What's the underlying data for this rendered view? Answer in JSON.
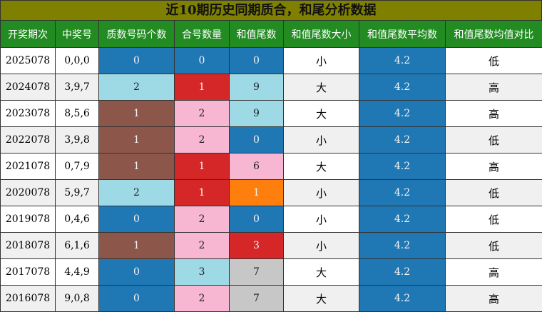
{
  "title": "近10期历史同期质合，和尾分析数据",
  "headers": [
    "开奖期次",
    "中奖号",
    "质数号码个数",
    "合号数量",
    "和值尾数",
    "和值尾数大小",
    "和值尾数平均数",
    "和值尾数均值对比"
  ],
  "colors": {
    "blue": "#1f77b4",
    "lightblue": "#9edae5",
    "red": "#d62728",
    "brown": "#8c564b",
    "pink": "#f7b6d2",
    "orange": "#ff7f0e",
    "gray": "#c7c7c7"
  },
  "rows": [
    {
      "issue": "2025078",
      "nums": "0,0,0",
      "prime": "0",
      "prime_color": "blue",
      "composite": "0",
      "composite_color": "blue",
      "tail": "0",
      "tail_color": "blue",
      "size": "小",
      "avg": "4.2",
      "cmp": "低"
    },
    {
      "issue": "2024078",
      "nums": "3,9,7",
      "prime": "2",
      "prime_color": "lightblue",
      "composite": "1",
      "composite_color": "red",
      "tail": "9",
      "tail_color": "lightblue",
      "size": "大",
      "avg": "4.2",
      "cmp": "高"
    },
    {
      "issue": "2023078",
      "nums": "8,5,6",
      "prime": "1",
      "prime_color": "brown",
      "composite": "2",
      "composite_color": "pink",
      "tail": "9",
      "tail_color": "lightblue",
      "size": "大",
      "avg": "4.2",
      "cmp": "高"
    },
    {
      "issue": "2022078",
      "nums": "3,9,8",
      "prime": "1",
      "prime_color": "brown",
      "composite": "2",
      "composite_color": "pink",
      "tail": "0",
      "tail_color": "blue",
      "size": "小",
      "avg": "4.2",
      "cmp": "低"
    },
    {
      "issue": "2021078",
      "nums": "0,7,9",
      "prime": "1",
      "prime_color": "brown",
      "composite": "1",
      "composite_color": "red",
      "tail": "6",
      "tail_color": "pink",
      "size": "大",
      "avg": "4.2",
      "cmp": "高"
    },
    {
      "issue": "2020078",
      "nums": "5,9,7",
      "prime": "2",
      "prime_color": "lightblue",
      "composite": "1",
      "composite_color": "red",
      "tail": "1",
      "tail_color": "orange",
      "size": "小",
      "avg": "4.2",
      "cmp": "低"
    },
    {
      "issue": "2019078",
      "nums": "0,4,6",
      "prime": "0",
      "prime_color": "blue",
      "composite": "2",
      "composite_color": "pink",
      "tail": "0",
      "tail_color": "blue",
      "size": "小",
      "avg": "4.2",
      "cmp": "低"
    },
    {
      "issue": "2018078",
      "nums": "6,1,6",
      "prime": "1",
      "prime_color": "brown",
      "composite": "2",
      "composite_color": "pink",
      "tail": "3",
      "tail_color": "red",
      "size": "小",
      "avg": "4.2",
      "cmp": "低"
    },
    {
      "issue": "2017078",
      "nums": "4,4,9",
      "prime": "0",
      "prime_color": "blue",
      "composite": "3",
      "composite_color": "lightblue",
      "tail": "7",
      "tail_color": "gray",
      "size": "大",
      "avg": "4.2",
      "cmp": "高"
    },
    {
      "issue": "2016078",
      "nums": "9,0,8",
      "prime": "0",
      "prime_color": "blue",
      "composite": "2",
      "composite_color": "pink",
      "tail": "7",
      "tail_color": "gray",
      "size": "大",
      "avg": "4.2",
      "cmp": "高"
    }
  ]
}
